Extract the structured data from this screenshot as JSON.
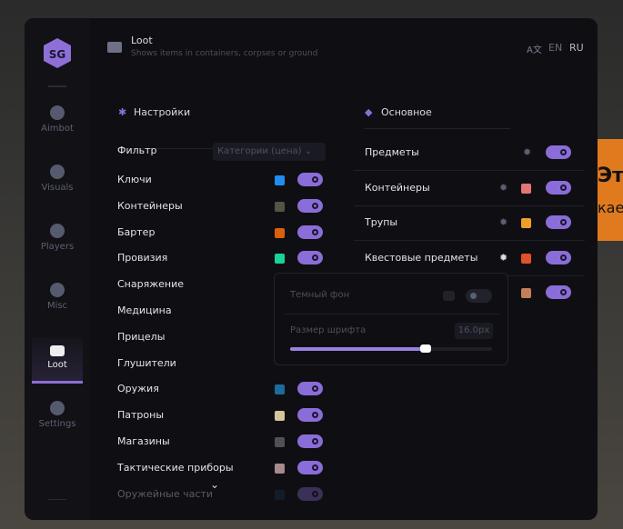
{
  "background": {
    "line1": "Эт",
    "line2": "кае"
  },
  "sidebar": {
    "items": [
      {
        "label": "Aimbot",
        "icon": "alien-icon"
      },
      {
        "label": "Visuals",
        "icon": "gamepad-icon"
      },
      {
        "label": "Players",
        "icon": "users-icon"
      },
      {
        "label": "Misc",
        "icon": "more-icon"
      },
      {
        "label": "Loot",
        "icon": "toolbox-icon",
        "active": true
      },
      {
        "label": "Settings",
        "icon": "list-icon"
      }
    ]
  },
  "header": {
    "title": "Loot",
    "subtitle": "Shows items in containers, corpses or ground",
    "lang_en": "EN",
    "lang_ru": "RU",
    "translate_glyph": "A文"
  },
  "settings": {
    "title": "Настройки",
    "filter_label": "Фильтр",
    "filter_value": "Категории (цена)",
    "items": [
      {
        "label": "Ключи",
        "color": "#1e8cf0",
        "on": true
      },
      {
        "label": "Контейнеры",
        "color": "#4f5646",
        "on": true
      },
      {
        "label": "Бартер",
        "color": "#d9600e",
        "on": true
      },
      {
        "label": "Провизия",
        "color": "#1bd19a",
        "on": true
      },
      {
        "label": "Снаряжение"
      },
      {
        "label": "Медицина"
      },
      {
        "label": "Прицелы"
      },
      {
        "label": "Глушители"
      },
      {
        "label": "Оружия",
        "color": "#1d6a9e",
        "on": true
      },
      {
        "label": "Патроны",
        "color": "#d6c59c",
        "on": true
      },
      {
        "label": "Магазины",
        "color": "#505058",
        "on": true
      },
      {
        "label": "Тактические приборы",
        "color": "#a68a8e",
        "on": true
      },
      {
        "label": "Оружейные части",
        "color": "#1d3a52",
        "on": true
      }
    ]
  },
  "main": {
    "title": "Основное",
    "items": [
      {
        "label": "Предметы",
        "on": true
      },
      {
        "label": "Контейнеры",
        "color": "#e47575",
        "on": true
      },
      {
        "label": "Трупы",
        "color": "#f0a02a",
        "on": true
      },
      {
        "label": "Квестовые предметы",
        "color": "#e0522a",
        "on": true
      },
      {
        "label": "",
        "color": "#c2805a",
        "on": true
      }
    ]
  },
  "popup": {
    "dark_bg_label": "Темный фон",
    "dark_bg_on": false,
    "font_size_label": "Размер шрифта",
    "font_size_value": "16.0px",
    "font_size_fraction": 0.67
  }
}
